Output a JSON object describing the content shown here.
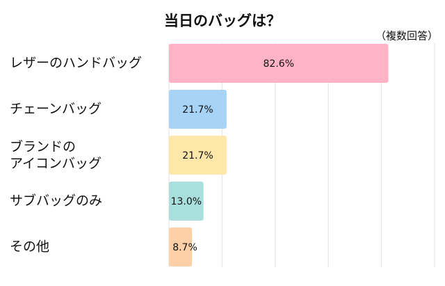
{
  "chart_data": {
    "type": "barh",
    "title": "当日のバッグは？",
    "subtitle": "（複数回答）",
    "categories": [
      "レザーのハンドバッグ",
      "チェーンバッグ",
      "ブランドの\nアイコンバッグ",
      "サブバッグのみ",
      "その他"
    ],
    "values": [
      82.6,
      21.7,
      21.7,
      13.0,
      8.7
    ],
    "value_labels": [
      "82.6%",
      "21.7%",
      "21.7%",
      "13.0%",
      "8.7%"
    ],
    "colors": [
      "#ffb3c4",
      "#a7d3f6",
      "#ffe6a9",
      "#a9e0de",
      "#fdd0a8"
    ],
    "xlim": [
      0,
      100
    ],
    "xticks": [
      0,
      20,
      40,
      60,
      80,
      100
    ],
    "grid": true
  }
}
